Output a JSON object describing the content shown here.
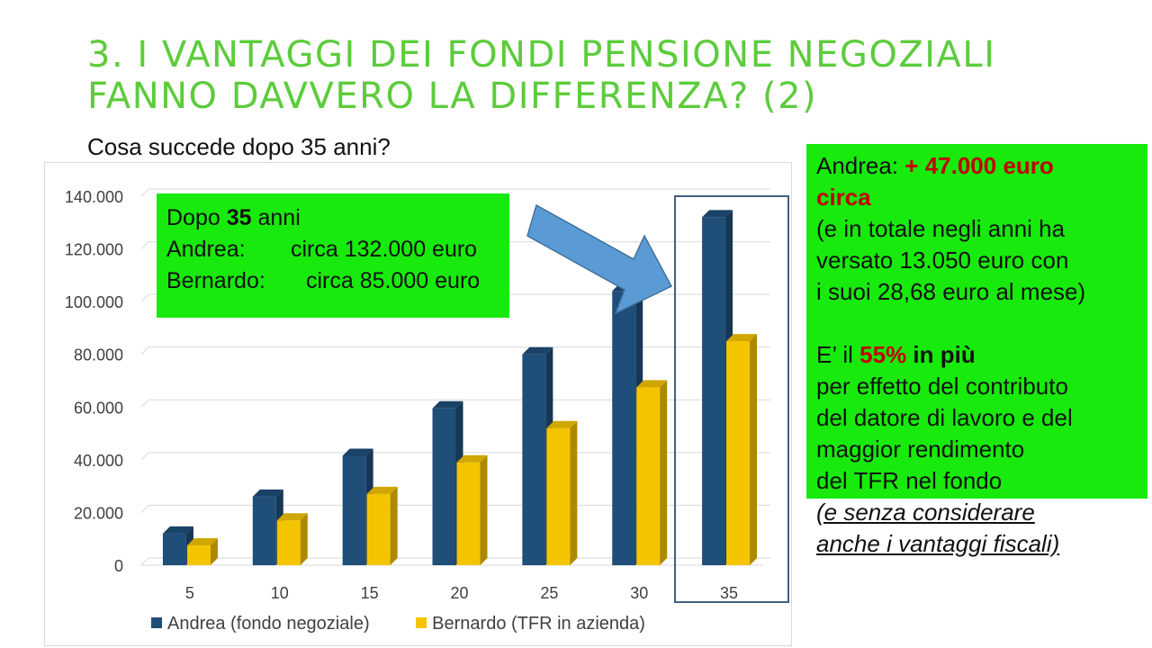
{
  "slide": {
    "title_line1": "3. I VANTAGGI DEI FONDI PENSIONE NEGOZIALI",
    "title_line2": "FANNO DAVVERO LA DIFFERENZA? (2)",
    "subtitle": "Cosa succede dopo 35 anni?"
  },
  "callout": {
    "line1_pre": "Dopo ",
    "line1_bold": "35",
    "line1_post": " anni",
    "andrea_label": "Andrea:",
    "andrea_value": "circa 132.000 euro",
    "bernardo_label": "Bernardo:",
    "bernardo_value": "circa 85.000 euro"
  },
  "side": {
    "l1_pre": "Andrea: ",
    "l1_red": "+ 47.000 euro",
    "l2_red": "circa",
    "l3": "(e in totale negli anni ha",
    "l4": "versato 13.050 euro con",
    "l5": "i suoi 28,68 euro al mese)",
    "l6_pre": "E’ il ",
    "l6_red": "55%",
    "l6_bold": " in più",
    "l7": "per effetto del contributo",
    "l8": "del datore di lavoro e del",
    "l9": "maggior rendimento",
    "l10": "del TFR nel fondo",
    "l11": "(e senza considerare ",
    "l12": "anche i vantaggi fiscali)"
  },
  "colors": {
    "andrea": "#1f4e79",
    "bernardo": "#f5c400",
    "highlight_box": "#18ea0d",
    "title": "#5ccc3c",
    "accent_red": "#c00000",
    "arrow": "#5b9bd5"
  },
  "chart_data": {
    "type": "bar",
    "categories": [
      "5",
      "10",
      "15",
      "20",
      "25",
      "30",
      "35"
    ],
    "series": [
      {
        "name": "Andrea (fondo negoziale)",
        "values": [
          12000,
          26000,
          41500,
          59500,
          80000,
          104000,
          132000
        ]
      },
      {
        "name": "Bernardo (TFR in azienda)",
        "values": [
          7500,
          17000,
          27000,
          39000,
          52000,
          67500,
          85000
        ]
      }
    ],
    "yticks": [
      "0",
      "20.000",
      "40.000",
      "60.000",
      "80.000",
      "100.000",
      "120.000",
      "140.000"
    ],
    "ylim": [
      0,
      140000
    ],
    "grid": true,
    "legend": "bottom",
    "highlight_category": "35"
  }
}
